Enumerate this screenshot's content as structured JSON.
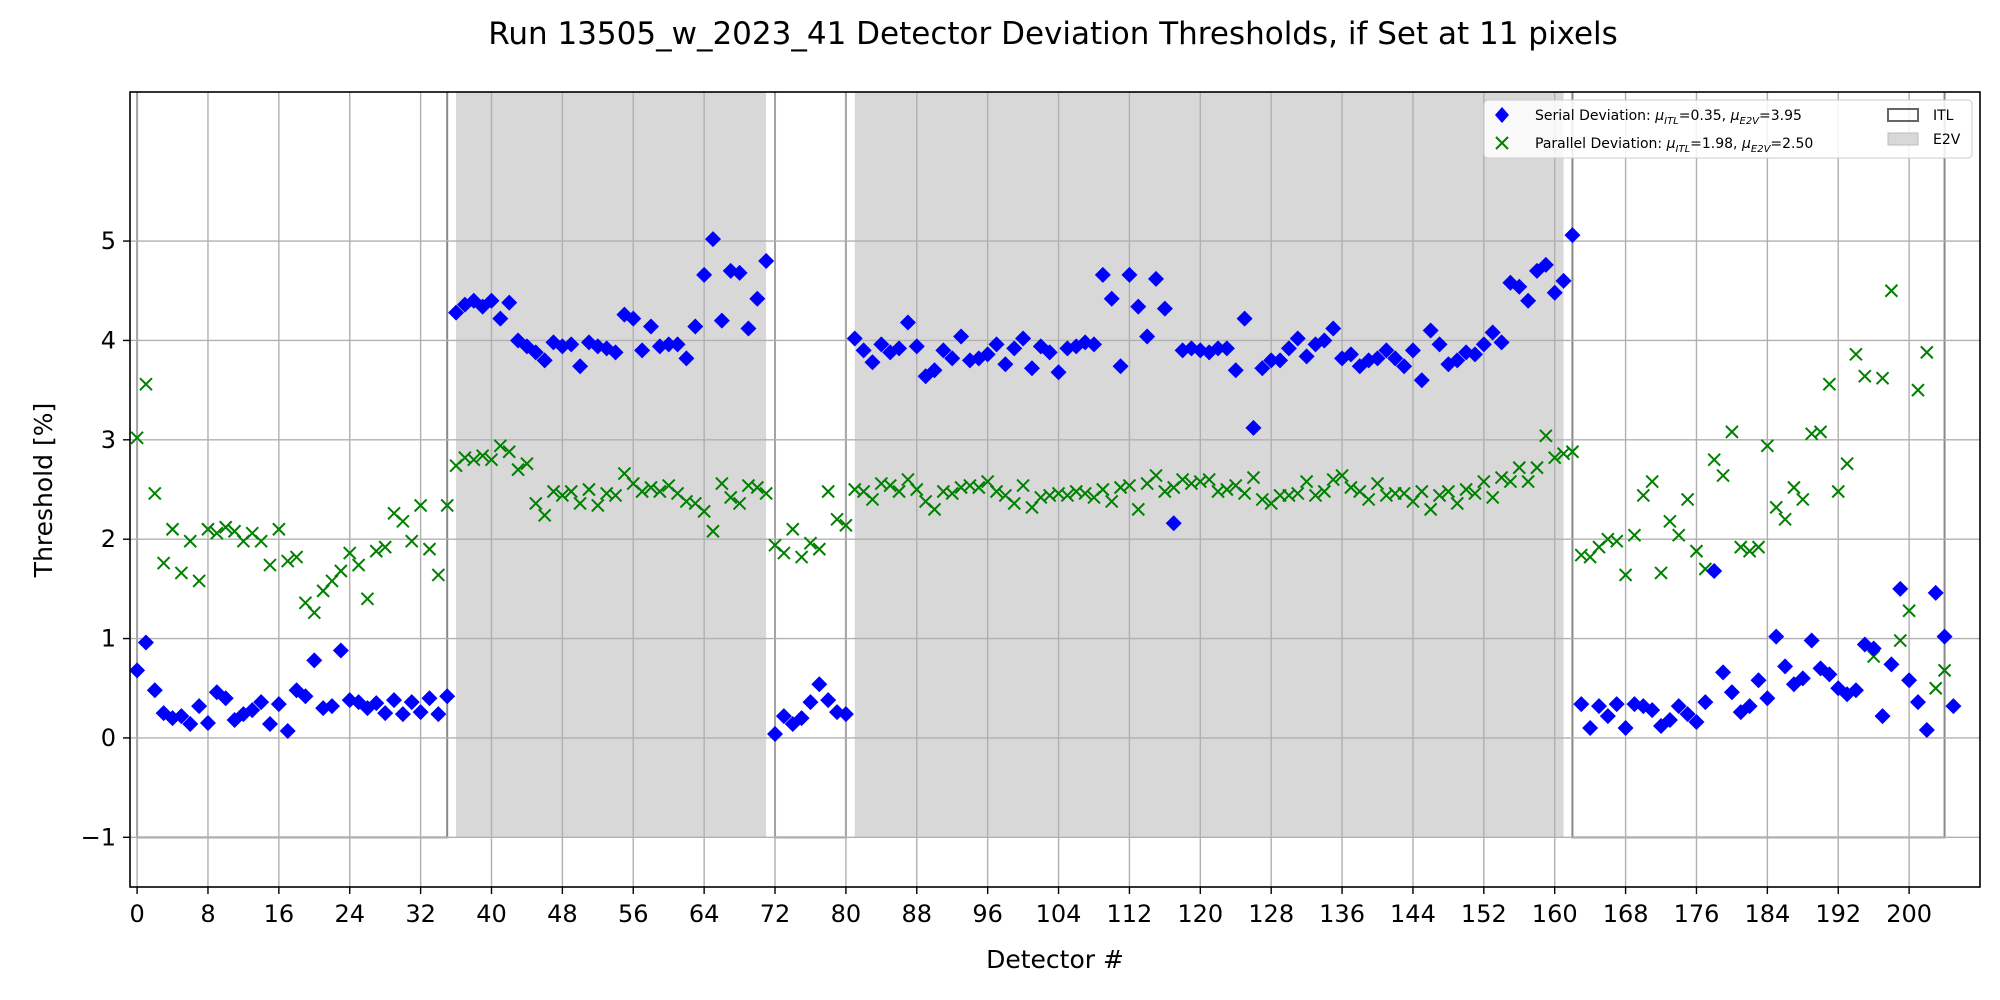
{
  "chart_data": {
    "type": "scatter",
    "title": "Run 13505_w_2023_41 Detector Deviation Thresholds, if Set at 11 pixels",
    "xlabel": "Detector #",
    "ylabel": "Threshold [%]",
    "xlim": [
      -0.8,
      208
    ],
    "ylim": [
      -1.5,
      6.5
    ],
    "xticks": [
      0,
      8,
      16,
      24,
      32,
      40,
      48,
      56,
      64,
      72,
      80,
      88,
      96,
      104,
      112,
      120,
      128,
      136,
      144,
      152,
      160,
      168,
      176,
      184,
      192,
      200
    ],
    "yticks": [
      -1,
      0,
      1,
      2,
      3,
      4,
      5
    ],
    "ytick_labels": [
      "−1",
      "0",
      "1",
      "2",
      "3",
      "4",
      "5"
    ],
    "grid": true,
    "legend_position": "top-right",
    "legend": {
      "serial": {
        "prefix": "Serial Deviation: ",
        "itl": "=0.35, ",
        "e2v": "=3.95"
      },
      "parallel": {
        "prefix": "Parallel Deviation: ",
        "itl": "=1.98, ",
        "e2v": "=2.50"
      },
      "mu": "μ",
      "itl_sub": "ITL",
      "e2v_sub": "E2V",
      "region_itl": "ITL",
      "region_e2v": "E2V"
    },
    "regions": [
      {
        "type": "ITL",
        "x0": 0,
        "x1": 35,
        "y0": -1,
        "y1": 6.5
      },
      {
        "type": "E2V",
        "x0": 36,
        "x1": 71,
        "y0": -1,
        "y1": 6.5
      },
      {
        "type": "ITL",
        "x0": 72,
        "x1": 80,
        "y0": -1,
        "y1": 6.5
      },
      {
        "type": "E2V",
        "x0": 81,
        "x1": 161,
        "y0": -1,
        "y1": 6.5
      },
      {
        "type": "ITL",
        "x0": 162,
        "x1": 204,
        "y0": -1,
        "y1": 6.5
      }
    ],
    "series": [
      {
        "name": "Serial Deviation",
        "marker": "diamond",
        "color": "#0000ff",
        "values": [
          0.68,
          0.96,
          0.48,
          0.25,
          0.2,
          0.22,
          0.14,
          0.32,
          0.15,
          0.46,
          0.4,
          0.18,
          0.24,
          0.28,
          0.36,
          0.14,
          0.34,
          0.07,
          0.48,
          0.42,
          0.78,
          0.3,
          0.32,
          0.88,
          0.38,
          0.36,
          0.3,
          0.35,
          0.25,
          0.38,
          0.24,
          0.36,
          0.26,
          0.4,
          0.24,
          0.42,
          4.28,
          4.36,
          4.4,
          4.34,
          4.4,
          4.22,
          4.38,
          4.0,
          3.94,
          3.88,
          3.8,
          3.98,
          3.94,
          3.96,
          3.74,
          3.98,
          3.94,
          3.92,
          3.88,
          4.26,
          4.22,
          3.9,
          4.14,
          3.94,
          3.96,
          3.96,
          3.82,
          4.14,
          4.66,
          5.02,
          4.2,
          4.7,
          4.68,
          4.12,
          4.42,
          4.8,
          0.04,
          0.22,
          0.14,
          0.2,
          0.36,
          0.54,
          0.38,
          0.26,
          0.24,
          4.02,
          3.9,
          3.78,
          3.96,
          3.88,
          3.92,
          4.18,
          3.94,
          3.64,
          3.7,
          3.9,
          3.82,
          4.04,
          3.8,
          3.82,
          3.86,
          3.96,
          3.76,
          3.92,
          4.02,
          3.72,
          3.94,
          3.88,
          3.68,
          3.92,
          3.94,
          3.98,
          3.96,
          4.66,
          4.42,
          3.74,
          4.66,
          4.34,
          4.04,
          4.62,
          4.32,
          2.16,
          3.9,
          3.92,
          3.9,
          3.88,
          3.92,
          3.92,
          3.7,
          4.22,
          3.12,
          3.72,
          3.8,
          3.8,
          3.92,
          4.02,
          3.84,
          3.96,
          4.0,
          4.12,
          3.82,
          3.86,
          3.74,
          3.8,
          3.82,
          3.9,
          3.82,
          3.74,
          3.9,
          3.6,
          4.1,
          3.96,
          3.76,
          3.8,
          3.88,
          3.86,
          3.96,
          4.08,
          3.98,
          4.58,
          4.54,
          4.4,
          4.7,
          4.76,
          4.48,
          4.6,
          5.06,
          0.34,
          0.1,
          0.32,
          0.22,
          0.34,
          0.1,
          0.34,
          0.32,
          0.28,
          0.12,
          0.18,
          0.32,
          0.24,
          0.16,
          0.36,
          1.68,
          0.66,
          0.46,
          0.26,
          0.32,
          0.58,
          0.4,
          1.02,
          0.72,
          0.54,
          0.6,
          0.98,
          0.7,
          0.64,
          0.5,
          0.44,
          0.48,
          0.94,
          0.9,
          0.22,
          0.74,
          1.5,
          0.58,
          0.36,
          0.08,
          1.46,
          1.02,
          0.32
        ]
      },
      {
        "name": "Parallel Deviation",
        "marker": "x",
        "color": "#008000",
        "values": [
          3.02,
          3.56,
          2.46,
          1.76,
          2.1,
          1.66,
          1.98,
          1.58,
          2.1,
          2.06,
          2.12,
          2.08,
          1.98,
          2.06,
          1.98,
          1.74,
          2.1,
          1.78,
          1.82,
          1.36,
          1.26,
          1.48,
          1.58,
          1.68,
          1.86,
          1.74,
          1.4,
          1.88,
          1.92,
          2.26,
          2.18,
          1.98,
          2.34,
          1.9,
          1.64,
          2.34,
          2.74,
          2.82,
          2.8,
          2.84,
          2.8,
          2.94,
          2.88,
          2.7,
          2.76,
          2.36,
          2.24,
          2.48,
          2.44,
          2.48,
          2.36,
          2.5,
          2.34,
          2.46,
          2.44,
          2.66,
          2.56,
          2.48,
          2.52,
          2.48,
          2.54,
          2.46,
          2.38,
          2.36,
          2.28,
          2.08,
          2.56,
          2.42,
          2.36,
          2.54,
          2.52,
          2.46,
          1.94,
          1.86,
          2.1,
          1.82,
          1.96,
          1.9,
          2.48,
          2.2,
          2.14,
          2.5,
          2.48,
          2.4,
          2.56,
          2.54,
          2.48,
          2.6,
          2.5,
          2.38,
          2.3,
          2.48,
          2.46,
          2.52,
          2.54,
          2.52,
          2.58,
          2.48,
          2.44,
          2.36,
          2.54,
          2.32,
          2.42,
          2.44,
          2.46,
          2.44,
          2.48,
          2.46,
          2.42,
          2.5,
          2.38,
          2.52,
          2.54,
          2.3,
          2.56,
          2.64,
          2.48,
          2.52,
          2.6,
          2.56,
          2.58,
          2.6,
          2.48,
          2.5,
          2.54,
          2.46,
          2.62,
          2.4,
          2.36,
          2.44,
          2.44,
          2.46,
          2.58,
          2.44,
          2.48,
          2.6,
          2.64,
          2.52,
          2.48,
          2.4,
          2.56,
          2.44,
          2.46,
          2.46,
          2.38,
          2.48,
          2.3,
          2.44,
          2.48,
          2.36,
          2.5,
          2.46,
          2.58,
          2.42,
          2.62,
          2.58,
          2.72,
          2.58,
          2.72,
          3.04,
          2.82,
          2.86,
          2.88,
          1.84,
          1.82,
          1.92,
          2.0,
          1.98,
          1.64,
          2.04,
          2.44,
          2.58,
          1.66,
          2.18,
          2.04,
          2.4,
          1.88,
          1.7,
          2.8,
          2.64,
          3.08,
          1.92,
          1.88,
          1.92,
          2.94,
          2.32,
          2.2,
          2.52,
          2.4,
          3.06,
          3.08,
          3.56,
          2.48,
          2.76,
          3.86,
          3.64,
          0.82,
          3.62,
          4.5,
          0.98,
          1.28,
          3.5,
          3.88,
          0.5,
          0.68
        ]
      }
    ]
  }
}
